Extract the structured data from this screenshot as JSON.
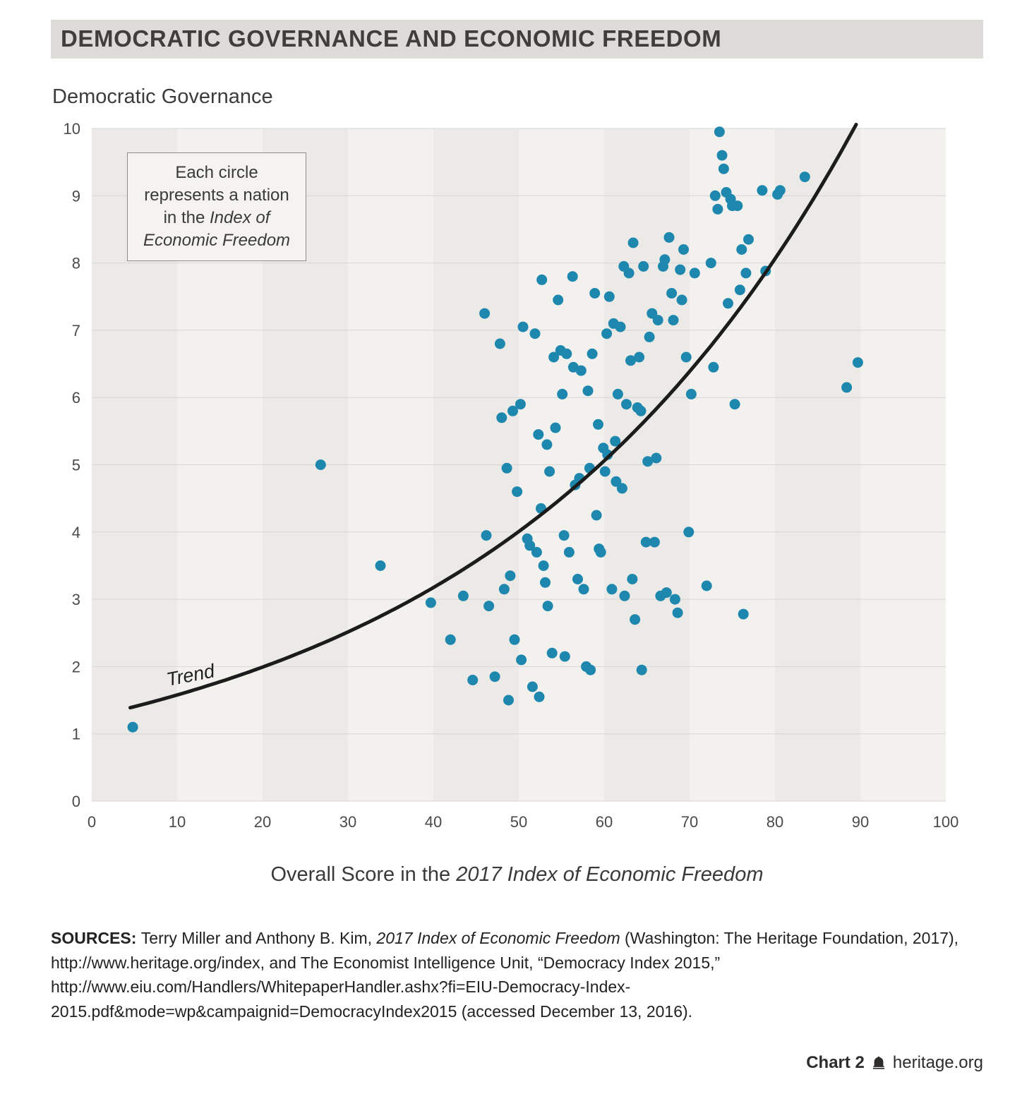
{
  "header": {
    "title": "DEMOCRATIC GOVERNANCE AND ECONOMIC FREEDOM"
  },
  "annotation": {
    "lines": [
      [
        {
          "text": "Each circle"
        }
      ],
      [
        {
          "text": "represents a nation"
        }
      ],
      [
        {
          "text": "in the "
        },
        {
          "text": "Index of",
          "italic": true
        }
      ],
      [
        {
          "text": "Economic Freedom",
          "italic": true
        }
      ]
    ]
  },
  "x_axis_label": {
    "regular": "Overall Score in the ",
    "italic": "2017 Index of Economic Freedom"
  },
  "sources": {
    "segments": [
      {
        "text": "SOURCES: ",
        "bold": true
      },
      {
        "text": "Terry Miller and Anthony B. Kim, "
      },
      {
        "text": "2017 Index of Economic Freedom",
        "italic": true
      },
      {
        "text": " (Washington: The Heritage Foundation, 2017), http://www.heritage.org/index, and The Economist Intelligence Unit, “Democracy Index 2015,” http://www.eiu.com/Handlers/WhitepaperHandler.ashx?fi=EIU-Democracy-Index-2015.pdf&mode=wp&campaignid=DemocracyIndex2015 (accessed December 13, 2016)."
      }
    ]
  },
  "footer": {
    "chart_label": "Chart 2",
    "site": "heritage.org"
  },
  "chart_data": {
    "type": "scatter",
    "title": "DEMOCRATIC GOVERNANCE AND ECONOMIC FREEDOM",
    "xlabel": "Overall Score in the 2017 Index of Economic Freedom",
    "ylabel": "Democratic Governance",
    "xlim": [
      0,
      100
    ],
    "ylim": [
      0,
      10
    ],
    "x_ticks": [
      0,
      10,
      20,
      30,
      40,
      50,
      60,
      70,
      80,
      90,
      100
    ],
    "y_ticks": [
      0,
      1,
      2,
      3,
      4,
      5,
      6,
      7,
      8,
      9,
      10
    ],
    "grid": true,
    "legend": "none",
    "point_color": "#1e87ae",
    "band_colors": [
      "#ebeae7",
      "#f2f1ee"
    ],
    "grid_color": "#d8d6d3",
    "trend": {
      "label": "Trend",
      "model": "y = a*exp(b*x)",
      "a": 1.25,
      "b": 0.0233,
      "x_start": 4.5,
      "x_end": 89.5
    },
    "points": [
      [
        4.8,
        1.1
      ],
      [
        26.8,
        5.0
      ],
      [
        33.8,
        3.5
      ],
      [
        39.7,
        2.95
      ],
      [
        42.0,
        2.4
      ],
      [
        43.5,
        3.05
      ],
      [
        44.6,
        1.8
      ],
      [
        46.0,
        7.25
      ],
      [
        46.2,
        3.95
      ],
      [
        46.5,
        2.9
      ],
      [
        47.2,
        1.85
      ],
      [
        47.8,
        6.8
      ],
      [
        48.0,
        5.7
      ],
      [
        48.3,
        3.15
      ],
      [
        48.6,
        4.95
      ],
      [
        48.8,
        1.5
      ],
      [
        49.0,
        3.35
      ],
      [
        49.3,
        5.8
      ],
      [
        49.5,
        2.4
      ],
      [
        49.8,
        4.6
      ],
      [
        50.2,
        5.9
      ],
      [
        50.3,
        2.1
      ],
      [
        50.5,
        7.05
      ],
      [
        51.0,
        3.9
      ],
      [
        51.3,
        3.8
      ],
      [
        51.6,
        1.7
      ],
      [
        51.9,
        6.95
      ],
      [
        52.1,
        3.7
      ],
      [
        52.3,
        5.45
      ],
      [
        52.4,
        1.55
      ],
      [
        52.6,
        4.35
      ],
      [
        52.7,
        7.75
      ],
      [
        52.9,
        3.5
      ],
      [
        53.1,
        3.25
      ],
      [
        53.3,
        5.3
      ],
      [
        53.4,
        2.9
      ],
      [
        53.6,
        4.9
      ],
      [
        53.9,
        2.2
      ],
      [
        54.1,
        6.6
      ],
      [
        54.3,
        5.55
      ],
      [
        54.6,
        7.45
      ],
      [
        54.9,
        6.7
      ],
      [
        55.1,
        6.05
      ],
      [
        55.3,
        3.95
      ],
      [
        55.4,
        2.15
      ],
      [
        55.6,
        6.65
      ],
      [
        55.9,
        3.7
      ],
      [
        56.3,
        7.8
      ],
      [
        56.4,
        6.45
      ],
      [
        56.6,
        4.7
      ],
      [
        56.9,
        3.3
      ],
      [
        57.1,
        4.8
      ],
      [
        57.3,
        6.4
      ],
      [
        57.6,
        3.15
      ],
      [
        57.9,
        2.0
      ],
      [
        58.1,
        6.1
      ],
      [
        58.3,
        4.95
      ],
      [
        58.4,
        1.95
      ],
      [
        58.6,
        6.65
      ],
      [
        58.9,
        7.55
      ],
      [
        59.1,
        4.25
      ],
      [
        59.3,
        5.6
      ],
      [
        59.4,
        3.75
      ],
      [
        59.6,
        3.7
      ],
      [
        59.9,
        5.25
      ],
      [
        60.1,
        4.9
      ],
      [
        60.3,
        6.95
      ],
      [
        60.4,
        5.15
      ],
      [
        60.6,
        7.5
      ],
      [
        60.9,
        3.15
      ],
      [
        61.1,
        7.1
      ],
      [
        61.3,
        5.35
      ],
      [
        61.4,
        4.75
      ],
      [
        61.6,
        6.05
      ],
      [
        61.9,
        7.05
      ],
      [
        62.1,
        4.65
      ],
      [
        62.3,
        7.95
      ],
      [
        62.4,
        3.05
      ],
      [
        62.6,
        5.9
      ],
      [
        62.9,
        7.85
      ],
      [
        63.1,
        6.55
      ],
      [
        63.3,
        3.3
      ],
      [
        63.4,
        8.3
      ],
      [
        63.6,
        2.7
      ],
      [
        63.9,
        5.85
      ],
      [
        64.1,
        6.6
      ],
      [
        64.3,
        5.8
      ],
      [
        64.4,
        1.95
      ],
      [
        64.6,
        7.95
      ],
      [
        64.9,
        3.85
      ],
      [
        65.1,
        5.05
      ],
      [
        65.3,
        6.9
      ],
      [
        65.6,
        7.25
      ],
      [
        65.9,
        3.85
      ],
      [
        66.1,
        5.1
      ],
      [
        66.3,
        7.15
      ],
      [
        66.6,
        3.05
      ],
      [
        66.9,
        7.95
      ],
      [
        67.1,
        8.05
      ],
      [
        67.3,
        3.1
      ],
      [
        67.6,
        8.38
      ],
      [
        67.9,
        7.55
      ],
      [
        68.1,
        7.15
      ],
      [
        68.3,
        3.0
      ],
      [
        68.6,
        2.8
      ],
      [
        68.9,
        7.9
      ],
      [
        69.1,
        7.45
      ],
      [
        69.3,
        8.2
      ],
      [
        69.6,
        6.6
      ],
      [
        69.9,
        4.0
      ],
      [
        70.2,
        6.05
      ],
      [
        70.6,
        7.85
      ],
      [
        72.0,
        3.2
      ],
      [
        72.5,
        8.0
      ],
      [
        72.8,
        6.45
      ],
      [
        73.0,
        9.0
      ],
      [
        73.3,
        8.8
      ],
      [
        73.5,
        9.95
      ],
      [
        73.8,
        9.6
      ],
      [
        74.0,
        9.4
      ],
      [
        74.3,
        9.05
      ],
      [
        74.5,
        7.4
      ],
      [
        74.8,
        8.95
      ],
      [
        75.0,
        8.85
      ],
      [
        75.3,
        5.9
      ],
      [
        75.6,
        8.85
      ],
      [
        75.9,
        7.6
      ],
      [
        76.1,
        8.2
      ],
      [
        76.3,
        2.78
      ],
      [
        76.6,
        7.85
      ],
      [
        76.9,
        8.35
      ],
      [
        78.5,
        9.08
      ],
      [
        78.9,
        7.88
      ],
      [
        80.3,
        9.02
      ],
      [
        80.6,
        9.08
      ],
      [
        83.5,
        9.28
      ],
      [
        88.4,
        6.15
      ],
      [
        89.7,
        6.52
      ]
    ]
  }
}
